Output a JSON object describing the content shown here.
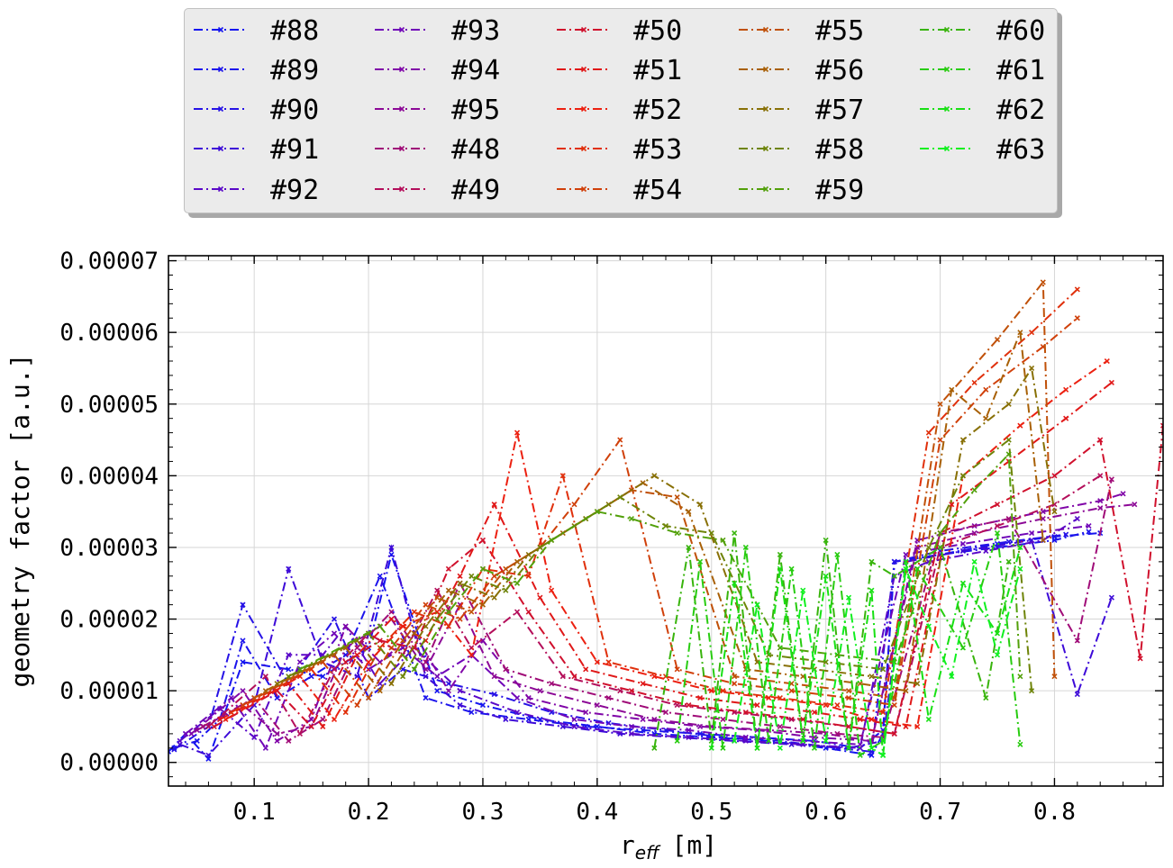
{
  "chart_data": {
    "type": "line",
    "title": "",
    "xlabel": "r_eff [m]",
    "xlabel_base": "r",
    "xlabel_sub": "eff",
    "xlabel_unit": "[m]",
    "ylabel": "geometry factor [a.u.]",
    "xlim": [
      0.025,
      0.895
    ],
    "ylim": [
      -3.3e-06,
      7.07e-05
    ],
    "x_ticks": [
      0.1,
      0.2,
      0.3,
      0.4,
      0.5,
      0.6,
      0.7,
      0.8
    ],
    "x_tick_labels": [
      "0.1",
      "0.2",
      "0.3",
      "0.4",
      "0.5",
      "0.6",
      "0.7",
      "0.8"
    ],
    "y_ticks": [
      0,
      1e-05,
      2e-05,
      3e-05,
      4e-05,
      5e-05,
      6e-05,
      7e-05
    ],
    "y_tick_labels": [
      "0.00000",
      "0.00001",
      "0.00002",
      "0.00003",
      "0.00004",
      "0.00005",
      "0.00006",
      "0.00007"
    ],
    "grid": true,
    "legend_position": "top-outside",
    "legend_columns": 5,
    "line_style": "dash-dot",
    "marker": "x",
    "series": [
      {
        "name": "#88",
        "color": "#1414f0",
        "x": [
          0.025,
          0.04,
          0.06,
          0.09,
          0.13,
          0.16,
          0.2,
          0.22,
          0.26,
          0.3,
          0.35,
          0.4,
          0.45,
          0.5,
          0.55,
          0.6,
          0.64,
          0.65,
          0.66,
          0.7,
          0.75,
          0.8,
          0.84
        ],
        "y": [
          1.5e-06,
          4e-06,
          5e-07,
          1.4e-05,
          1.3e-05,
          1.2e-05,
          1.6e-05,
          2.9e-05,
          1e-05,
          8e-06,
          6e-06,
          5e-06,
          4e-06,
          3.5e-06,
          3e-06,
          2e-06,
          1e-06,
          4e-06,
          2.8e-05,
          2.9e-05,
          3.05e-05,
          3.15e-05,
          3.2e-05
        ]
      },
      {
        "name": "#89",
        "color": "#1c14ec",
        "x": [
          0.03,
          0.05,
          0.07,
          0.09,
          0.12,
          0.15,
          0.18,
          0.21,
          0.25,
          0.29,
          0.34,
          0.39,
          0.44,
          0.49,
          0.54,
          0.59,
          0.63,
          0.65,
          0.66,
          0.7,
          0.75,
          0.8,
          0.83
        ],
        "y": [
          2e-06,
          3e-06,
          6e-06,
          1.7e-05,
          9e-06,
          1.2e-05,
          1.5e-05,
          2.6e-05,
          9e-06,
          7e-06,
          6e-06,
          5e-06,
          4.5e-06,
          4e-06,
          3.5e-06,
          3e-06,
          2e-06,
          4.5e-06,
          2.8e-05,
          2.9e-05,
          3e-05,
          3.1e-05,
          3.22e-05
        ]
      },
      {
        "name": "#90",
        "color": "#2612e6",
        "x": [
          0.03,
          0.06,
          0.09,
          0.13,
          0.17,
          0.2,
          0.23,
          0.27,
          0.31,
          0.36,
          0.41,
          0.46,
          0.51,
          0.56,
          0.61,
          0.64,
          0.66,
          0.7,
          0.76,
          0.81
        ],
        "y": [
          1.8e-06,
          5e-06,
          2.2e-05,
          1.1e-05,
          2e-05,
          9e-06,
          1.3e-05,
          1.1e-05,
          9.5e-06,
          7e-06,
          5.5e-06,
          4.5e-06,
          3.5e-06,
          3e-06,
          2e-06,
          1.5e-06,
          2.8e-05,
          2.95e-05,
          3.08e-05,
          3.18e-05
        ]
      },
      {
        "name": "#91",
        "color": "#3d0ad8",
        "x": [
          0.035,
          0.06,
          0.1,
          0.13,
          0.16,
          0.19,
          0.22,
          0.25,
          0.28,
          0.32,
          0.37,
          0.42,
          0.47,
          0.52,
          0.57,
          0.62,
          0.65,
          0.67,
          0.72,
          0.78,
          0.82,
          0.85
        ],
        "y": [
          2.5e-06,
          1e-06,
          8e-06,
          2.7e-05,
          1.4e-05,
          1.2e-05,
          3e-05,
          1.2e-05,
          8e-06,
          6e-06,
          5e-06,
          4e-06,
          3.5e-06,
          3e-06,
          2.5e-06,
          2e-06,
          3e-06,
          2.8e-05,
          2.95e-05,
          3.1e-05,
          9.5e-06,
          2.3e-05
        ]
      },
      {
        "name": "#92",
        "color": "#5a08c8",
        "x": [
          0.035,
          0.07,
          0.1,
          0.13,
          0.16,
          0.18,
          0.21,
          0.24,
          0.28,
          0.33,
          0.38,
          0.43,
          0.48,
          0.53,
          0.58,
          0.63,
          0.66,
          0.69,
          0.74,
          0.79,
          0.82
        ],
        "y": [
          3e-06,
          7.5e-06,
          3.5e-06,
          1.5e-05,
          1.5e-05,
          1.9e-05,
          1.1e-05,
          1.6e-05,
          1e-05,
          7e-06,
          5e-06,
          4e-06,
          3.5e-06,
          3e-06,
          2.5e-06,
          2e-06,
          2.6e-05,
          2.8e-05,
          2.95e-05,
          3.1e-05,
          3.4e-05
        ]
      },
      {
        "name": "#93",
        "color": "#7006b8",
        "x": [
          0.04,
          0.08,
          0.11,
          0.14,
          0.17,
          0.2,
          0.23,
          0.26,
          0.29,
          0.33,
          0.38,
          0.43,
          0.48,
          0.53,
          0.58,
          0.63,
          0.67,
          0.72,
          0.78,
          0.83
        ],
        "y": [
          4e-06,
          9e-06,
          2e-06,
          1.4e-05,
          1.8e-05,
          1.3e-05,
          1.6e-05,
          1.2e-05,
          1.5e-05,
          9e-06,
          6e-06,
          5e-06,
          4.5e-06,
          3.5e-06,
          3e-06,
          2.5e-06,
          2.9e-05,
          3.05e-05,
          3.2e-05,
          3.3e-05
        ]
      },
      {
        "name": "#94",
        "color": "#8006a8",
        "x": [
          0.045,
          0.09,
          0.12,
          0.15,
          0.18,
          0.21,
          0.24,
          0.27,
          0.3,
          0.34,
          0.39,
          0.44,
          0.49,
          0.54,
          0.59,
          0.64,
          0.68,
          0.73,
          0.79,
          0.84,
          0.86
        ],
        "y": [
          4e-06,
          1e-05,
          3e-06,
          6e-06,
          1.9e-05,
          1.4e-05,
          1.8e-05,
          1e-05,
          1.7e-05,
          9e-06,
          7e-06,
          6e-06,
          5e-06,
          4.5e-06,
          3.5e-06,
          3e-06,
          3.1e-05,
          3.3e-05,
          3.5e-05,
          3.65e-05,
          3.75e-05
        ]
      },
      {
        "name": "#95",
        "color": "#8c0896",
        "x": [
          0.05,
          0.09,
          0.12,
          0.15,
          0.18,
          0.22,
          0.25,
          0.28,
          0.31,
          0.35,
          0.4,
          0.45,
          0.5,
          0.55,
          0.6,
          0.64,
          0.68,
          0.73,
          0.79,
          0.84,
          0.87
        ],
        "y": [
          4.5e-06,
          8e-06,
          4e-06,
          5e-06,
          1.6e-05,
          2e-05,
          1.3e-05,
          2.2e-05,
          1.2e-05,
          1e-05,
          8e-06,
          6e-06,
          5e-06,
          4.5e-06,
          4e-06,
          3e-06,
          3e-05,
          3.2e-05,
          3.4e-05,
          3.55e-05,
          3.6e-05
        ]
      },
      {
        "name": "#48",
        "color": "#a00c78",
        "x": [
          0.055,
          0.1,
          0.13,
          0.16,
          0.19,
          0.22,
          0.25,
          0.28,
          0.32,
          0.36,
          0.41,
          0.46,
          0.51,
          0.56,
          0.61,
          0.65,
          0.7,
          0.76,
          0.82,
          0.85
        ],
        "y": [
          5e-06,
          9e-06,
          3e-06,
          6e-06,
          1.6e-05,
          2.1e-05,
          1.4e-05,
          2.5e-05,
          1.3e-05,
          1.1e-05,
          9e-06,
          7e-06,
          6e-06,
          5e-06,
          4e-06,
          3.5e-06,
          3.2e-05,
          3.4e-05,
          1.7e-05,
          3.95e-05
        ]
      },
      {
        "name": "#49",
        "color": "#b40e5a",
        "x": [
          0.06,
          0.11,
          0.14,
          0.17,
          0.2,
          0.23,
          0.26,
          0.29,
          0.33,
          0.37,
          0.42,
          0.47,
          0.52,
          0.57,
          0.62,
          0.66,
          0.7,
          0.75,
          0.8,
          0.84
        ],
        "y": [
          5e-06,
          1.2e-05,
          4e-06,
          1.3e-05,
          1.8e-05,
          1.5e-05,
          2.4e-05,
          1.6e-05,
          2.1e-05,
          1.2e-05,
          1e-05,
          8e-06,
          7e-06,
          6e-06,
          5e-06,
          4e-06,
          3e-05,
          3.3e-05,
          3.6e-05,
          4e-05
        ]
      },
      {
        "name": "#50",
        "color": "#d0102c",
        "x": [
          0.065,
          0.12,
          0.15,
          0.18,
          0.21,
          0.24,
          0.27,
          0.3,
          0.34,
          0.38,
          0.43,
          0.48,
          0.53,
          0.58,
          0.62,
          0.66,
          0.7,
          0.75,
          0.8,
          0.84,
          0.875,
          0.895
        ],
        "y": [
          5e-06,
          1e-05,
          5e-06,
          1.4e-05,
          1.7e-05,
          1.6e-05,
          2.7e-05,
          3.1e-05,
          2.1e-05,
          1.2e-05,
          1e-05,
          8e-06,
          7e-06,
          6e-06,
          5e-06,
          4e-06,
          3.2e-05,
          3.6e-05,
          4e-05,
          4.5e-05,
          1.45e-05,
          4.7e-05
        ]
      },
      {
        "name": "#51",
        "color": "#e01818",
        "x": [
          0.07,
          0.13,
          0.16,
          0.19,
          0.22,
          0.25,
          0.28,
          0.31,
          0.35,
          0.39,
          0.44,
          0.49,
          0.54,
          0.59,
          0.63,
          0.67,
          0.71,
          0.76,
          0.81,
          0.85
        ],
        "y": [
          6e-06,
          1.1e-05,
          5e-06,
          1.5e-05,
          2e-05,
          1.7e-05,
          2.6e-05,
          3.6e-05,
          2.3e-05,
          1.3e-05,
          1.1e-05,
          9e-06,
          8e-06,
          7e-06,
          6e-06,
          5e-06,
          3.6e-05,
          4.2e-05,
          4.8e-05,
          5.3e-05
        ]
      },
      {
        "name": "#52",
        "color": "#ec2010",
        "x": [
          0.075,
          0.14,
          0.17,
          0.2,
          0.23,
          0.26,
          0.29,
          0.33,
          0.36,
          0.4,
          0.45,
          0.5,
          0.55,
          0.6,
          0.64,
          0.68,
          0.72,
          0.77,
          0.81,
          0.846
        ],
        "y": [
          6e-06,
          1.2e-05,
          6e-06,
          1.4e-05,
          1.9e-05,
          2.1e-05,
          1.5e-05,
          4.6e-05,
          2.4e-05,
          1.4e-05,
          1.2e-05,
          1e-05,
          9e-06,
          8e-06,
          6e-06,
          5e-06,
          4e-05,
          4.7e-05,
          5.2e-05,
          5.6e-05
        ]
      },
      {
        "name": "#53",
        "color": "#e0300c",
        "x": [
          0.08,
          0.15,
          0.18,
          0.21,
          0.24,
          0.27,
          0.3,
          0.34,
          0.37,
          0.41,
          0.46,
          0.51,
          0.56,
          0.61,
          0.65,
          0.69,
          0.73,
          0.78,
          0.82
        ],
        "y": [
          7e-06,
          1.3e-05,
          7e-06,
          1.6e-05,
          2.1e-05,
          1.9e-05,
          2.7e-05,
          2.6e-05,
          4e-05,
          1.4e-05,
          1.2e-05,
          1e-05,
          9e-06,
          8e-06,
          7e-06,
          4.6e-05,
          5.3e-05,
          6e-05,
          6.6e-05
        ]
      },
      {
        "name": "#54",
        "color": "#d0400a",
        "x": [
          0.09,
          0.16,
          0.19,
          0.22,
          0.25,
          0.28,
          0.31,
          0.35,
          0.38,
          0.42,
          0.47,
          0.52,
          0.57,
          0.62,
          0.66,
          0.7,
          0.74,
          0.79,
          0.82
        ],
        "y": [
          8e-06,
          1.4e-05,
          8e-06,
          1.6e-05,
          2.2e-05,
          2e-05,
          2.6e-05,
          3e-05,
          3.6e-05,
          4.5e-05,
          1.3e-05,
          1.1e-05,
          1e-05,
          9e-06,
          8e-06,
          4.5e-05,
          5.2e-05,
          5.8e-05,
          6.2e-05
        ]
      },
      {
        "name": "#55",
        "color": "#c05008",
        "x": [
          0.1,
          0.17,
          0.2,
          0.23,
          0.26,
          0.29,
          0.32,
          0.36,
          0.39,
          0.43,
          0.47,
          0.52,
          0.57,
          0.62,
          0.66,
          0.7,
          0.75,
          0.79,
          0.8
        ],
        "y": [
          9e-06,
          1.5e-05,
          9e-06,
          1.7e-05,
          2.3e-05,
          2.1e-05,
          2.7e-05,
          3.1e-05,
          3.4e-05,
          3.8e-05,
          3.7e-05,
          1.2e-05,
          1.1e-05,
          1e-05,
          9e-06,
          5e-05,
          5.9e-05,
          6.7e-05,
          1.2e-05
        ]
      },
      {
        "name": "#56",
        "color": "#a86006",
        "x": [
          0.11,
          0.18,
          0.21,
          0.24,
          0.27,
          0.3,
          0.33,
          0.37,
          0.4,
          0.44,
          0.48,
          0.53,
          0.58,
          0.63,
          0.67,
          0.71,
          0.74,
          0.77,
          0.79
        ],
        "y": [
          1e-05,
          1.6e-05,
          1e-05,
          1.8e-05,
          2.4e-05,
          2.2e-05,
          2.8e-05,
          3.2e-05,
          3.5e-05,
          3.9e-05,
          3.5e-05,
          1.3e-05,
          1.2e-05,
          1.1e-05,
          1e-05,
          5.2e-05,
          4.8e-05,
          6e-05,
          3.1e-05
        ]
      },
      {
        "name": "#57",
        "color": "#887006",
        "x": [
          0.12,
          0.19,
          0.22,
          0.25,
          0.28,
          0.31,
          0.34,
          0.38,
          0.41,
          0.45,
          0.49,
          0.54,
          0.59,
          0.64,
          0.68,
          0.72,
          0.76,
          0.78,
          0.8
        ],
        "y": [
          1.1e-05,
          1.7e-05,
          1.1e-05,
          1.9e-05,
          2.5e-05,
          2.3e-05,
          2.9e-05,
          3.3e-05,
          3.6e-05,
          4e-05,
          3.6e-05,
          1.4e-05,
          1.3e-05,
          1.2e-05,
          1.1e-05,
          4.5e-05,
          5e-05,
          5.5e-05,
          3.5e-05
        ]
      },
      {
        "name": "#58",
        "color": "#6e8408",
        "x": [
          0.13,
          0.2,
          0.23,
          0.26,
          0.29,
          0.32,
          0.35,
          0.39,
          0.42,
          0.46,
          0.5,
          0.55,
          0.6,
          0.65,
          0.69,
          0.72,
          0.76,
          0.78
        ],
        "y": [
          1.2e-05,
          1.8e-05,
          1.2e-05,
          2e-05,
          2.6e-05,
          2.4e-05,
          3e-05,
          3.4e-05,
          3.7e-05,
          3.3e-05,
          3.2e-05,
          1.5e-05,
          1.4e-05,
          1.3e-05,
          3e-05,
          4e-05,
          4.5e-05,
          1e-05
        ]
      },
      {
        "name": "#59",
        "color": "#52a00a",
        "x": [
          0.14,
          0.21,
          0.24,
          0.27,
          0.3,
          0.33,
          0.36,
          0.4,
          0.43,
          0.47,
          0.51,
          0.56,
          0.61,
          0.66,
          0.7,
          0.73,
          0.76,
          0.77
        ],
        "y": [
          1.3e-05,
          1.9e-05,
          1.3e-05,
          2.1e-05,
          2.7e-05,
          2.5e-05,
          3.1e-05,
          3.5e-05,
          3.4e-05,
          3.2e-05,
          3.1e-05,
          1.6e-05,
          1.5e-05,
          1.4e-05,
          3.2e-05,
          3.8e-05,
          4.3e-05,
          1.2e-05
        ]
      },
      {
        "name": "#60",
        "color": "#38b40c",
        "x": [
          0.45,
          0.48,
          0.5,
          0.52,
          0.54,
          0.56,
          0.58,
          0.6,
          0.62,
          0.64,
          0.66,
          0.7,
          0.74,
          0.76
        ],
        "y": [
          2e-06,
          3e-05,
          3e-06,
          3.2e-05,
          2e-06,
          2.9e-05,
          3e-06,
          3.1e-05,
          2e-06,
          2.8e-05,
          2.6e-05,
          3e-05,
          9e-06,
          2.8e-05
        ]
      },
      {
        "name": "#61",
        "color": "#28cc10",
        "x": [
          0.47,
          0.49,
          0.51,
          0.53,
          0.55,
          0.57,
          0.59,
          0.61,
          0.63,
          0.65,
          0.68,
          0.72,
          0.75,
          0.77
        ],
        "y": [
          3e-06,
          2.8e-05,
          2e-06,
          3e-05,
          3e-06,
          2.7e-05,
          2e-06,
          2.9e-05,
          1e-06,
          3e-06,
          2.7e-05,
          1.6e-05,
          3.2e-05,
          2.5e-06
        ]
      },
      {
        "name": "#62",
        "color": "#18e014",
        "x": [
          0.5,
          0.52,
          0.54,
          0.56,
          0.58,
          0.6,
          0.62,
          0.64,
          0.65,
          0.67,
          0.69,
          0.72,
          0.75,
          0.77
        ],
        "y": [
          2e-06,
          2.5e-05,
          2e-06,
          2.7e-05,
          3e-06,
          2.6e-05,
          2e-06,
          2.4e-05,
          1e-06,
          2.8e-05,
          6e-06,
          2.5e-05,
          1.8e-05,
          3e-05
        ]
      },
      {
        "name": "#63",
        "color": "#10f020",
        "x": [
          0.52,
          0.54,
          0.56,
          0.58,
          0.6,
          0.62,
          0.64,
          0.65,
          0.67,
          0.69,
          0.71,
          0.73,
          0.75,
          0.77
        ],
        "y": [
          3e-06,
          2.2e-05,
          2e-06,
          2.4e-05,
          3e-06,
          2.3e-05,
          2e-06,
          1e-06,
          2.7e-05,
          1.9e-05,
          1.2e-05,
          2.8e-05,
          1.5e-05,
          2.7e-05
        ]
      }
    ]
  }
}
